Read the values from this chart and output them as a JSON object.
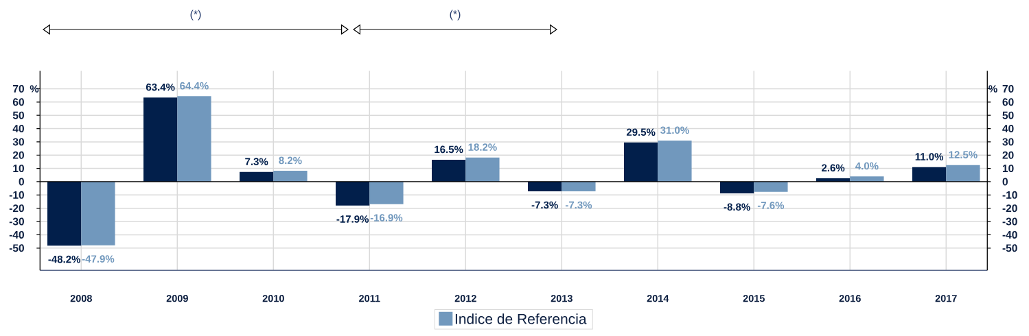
{
  "chart_data": {
    "type": "bar",
    "annotations": [
      "(*)",
      "(*)"
    ],
    "ylabel": "%",
    "y2label": "%",
    "categories": [
      "2008",
      "2009",
      "2010",
      "2011",
      "2012",
      "2013",
      "2014",
      "2015",
      "2016",
      "2017"
    ],
    "series": [
      {
        "color": "#021f4b",
        "values": [
          -48.2,
          63.4,
          7.3,
          -17.9,
          16.5,
          -7.3,
          29.5,
          -8.8,
          2.6,
          11.0
        ],
        "value_labels": [
          "-48.2%",
          "63.4%",
          "7.3%",
          "-17.9%",
          "16.5%",
          "-7.3%",
          "29.5%",
          "-8.8%",
          "2.6%",
          "11.0%"
        ]
      },
      {
        "name": "Indice de Referencia",
        "color": "#7198bd",
        "values": [
          -47.9,
          64.4,
          8.2,
          -16.9,
          18.2,
          -7.3,
          31.0,
          -7.6,
          4.0,
          12.5
        ],
        "value_labels": [
          "-47.9%",
          "64.4%",
          "8.2%",
          "-16.9%",
          "18.2%",
          "-7.3%",
          "31.0%",
          "-7.6%",
          "4.0%",
          "12.5%"
        ]
      }
    ],
    "ylim": [
      -66.8,
      83.5
    ],
    "yticks": [
      -50,
      -40,
      -30,
      -20,
      -10,
      0,
      10,
      20,
      30,
      40,
      50,
      60,
      70
    ],
    "y2lim": [
      -66.8,
      83.5
    ],
    "y2ticks": [
      -50,
      -40,
      -30,
      -20,
      -10,
      0,
      10,
      20,
      30,
      40,
      50,
      60,
      70
    ],
    "grid": true,
    "legend": "bottom"
  }
}
